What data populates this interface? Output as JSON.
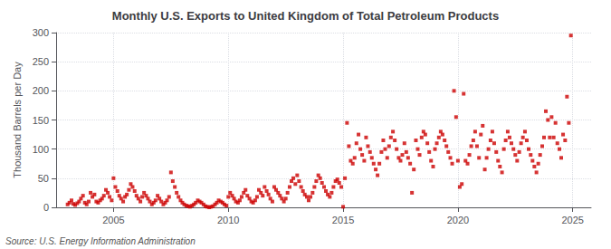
{
  "chart_data": {
    "type": "scatter",
    "title": "Monthly U.S. Exports to United Kingdom of Total Petroleum Products",
    "y_label": "Thousand Barrels per Day",
    "annotations": [
      "Source: U.S. Energy Information Administration"
    ],
    "color": "#CC0000",
    "marker": "square",
    "grid": true,
    "xlim": [
      2002.5,
      2025.8
    ],
    "xticks": [
      2005,
      2010,
      2015,
      2020,
      2025
    ],
    "ylim": [
      0,
      300
    ],
    "yticks": [
      0,
      50,
      100,
      150,
      200,
      250,
      300
    ],
    "x": [
      2003.0,
      2003.08,
      2003.17,
      2003.25,
      2003.33,
      2003.42,
      2003.5,
      2003.58,
      2003.67,
      2003.75,
      2003.83,
      2003.92,
      2004.0,
      2004.08,
      2004.17,
      2004.25,
      2004.33,
      2004.42,
      2004.5,
      2004.58,
      2004.67,
      2004.75,
      2004.83,
      2004.92,
      2005.0,
      2005.08,
      2005.17,
      2005.25,
      2005.33,
      2005.42,
      2005.5,
      2005.58,
      2005.67,
      2005.75,
      2005.83,
      2005.92,
      2006.0,
      2006.08,
      2006.17,
      2006.25,
      2006.33,
      2006.42,
      2006.5,
      2006.58,
      2006.67,
      2006.75,
      2006.83,
      2006.92,
      2007.0,
      2007.08,
      2007.17,
      2007.25,
      2007.33,
      2007.42,
      2007.5,
      2007.58,
      2007.67,
      2007.75,
      2007.83,
      2007.92,
      2008.0,
      2008.08,
      2008.17,
      2008.25,
      2008.33,
      2008.42,
      2008.5,
      2008.58,
      2008.67,
      2008.75,
      2008.83,
      2008.92,
      2009.0,
      2009.08,
      2009.17,
      2009.25,
      2009.33,
      2009.42,
      2009.5,
      2009.58,
      2009.67,
      2009.75,
      2009.83,
      2009.92,
      2010.0,
      2010.08,
      2010.17,
      2010.25,
      2010.33,
      2010.42,
      2010.5,
      2010.58,
      2010.67,
      2010.75,
      2010.83,
      2010.92,
      2011.0,
      2011.08,
      2011.17,
      2011.25,
      2011.33,
      2011.42,
      2011.5,
      2011.58,
      2011.67,
      2011.75,
      2011.83,
      2011.92,
      2012.0,
      2012.08,
      2012.17,
      2012.25,
      2012.33,
      2012.42,
      2012.5,
      2012.58,
      2012.67,
      2012.75,
      2012.83,
      2012.92,
      2013.0,
      2013.08,
      2013.17,
      2013.25,
      2013.33,
      2013.42,
      2013.5,
      2013.58,
      2013.67,
      2013.75,
      2013.83,
      2013.92,
      2014.0,
      2014.08,
      2014.17,
      2014.25,
      2014.33,
      2014.42,
      2014.5,
      2014.58,
      2014.67,
      2014.75,
      2014.83,
      2014.92,
      2015.0,
      2015.08,
      2015.17,
      2015.25,
      2015.33,
      2015.42,
      2015.5,
      2015.58,
      2015.67,
      2015.75,
      2015.83,
      2015.92,
      2016.0,
      2016.08,
      2016.17,
      2016.25,
      2016.33,
      2016.42,
      2016.5,
      2016.58,
      2016.67,
      2016.75,
      2016.83,
      2016.92,
      2017.0,
      2017.08,
      2017.17,
      2017.25,
      2017.33,
      2017.42,
      2017.5,
      2017.58,
      2017.67,
      2017.75,
      2017.83,
      2017.92,
      2018.0,
      2018.08,
      2018.17,
      2018.25,
      2018.33,
      2018.42,
      2018.5,
      2018.58,
      2018.67,
      2018.75,
      2018.83,
      2018.92,
      2019.0,
      2019.08,
      2019.17,
      2019.25,
      2019.33,
      2019.42,
      2019.5,
      2019.58,
      2019.67,
      2019.75,
      2019.83,
      2019.92,
      2020.0,
      2020.08,
      2020.17,
      2020.25,
      2020.33,
      2020.42,
      2020.5,
      2020.58,
      2020.67,
      2020.75,
      2020.83,
      2020.92,
      2021.0,
      2021.08,
      2021.17,
      2021.25,
      2021.33,
      2021.42,
      2021.5,
      2021.58,
      2021.67,
      2021.75,
      2021.83,
      2021.92,
      2022.0,
      2022.08,
      2022.17,
      2022.25,
      2022.33,
      2022.42,
      2022.5,
      2022.58,
      2022.67,
      2022.75,
      2022.83,
      2022.92,
      2023.0,
      2023.08,
      2023.17,
      2023.25,
      2023.33,
      2023.42,
      2023.5,
      2023.58,
      2023.67,
      2023.75,
      2023.83,
      2023.92,
      2024.0,
      2024.08,
      2024.17,
      2024.25,
      2024.33,
      2024.42,
      2024.5,
      2024.58,
      2024.67,
      2024.75,
      2024.83,
      2024.92
    ],
    "values": [
      5,
      8,
      12,
      6,
      4,
      7,
      10,
      15,
      20,
      8,
      5,
      10,
      25,
      18,
      22,
      10,
      8,
      12,
      15,
      20,
      30,
      25,
      18,
      12,
      50,
      35,
      28,
      20,
      15,
      10,
      18,
      22,
      30,
      40,
      35,
      28,
      20,
      15,
      10,
      18,
      25,
      20,
      15,
      10,
      5,
      8,
      12,
      20,
      15,
      10,
      5,
      8,
      12,
      18,
      60,
      45,
      35,
      25,
      18,
      12,
      8,
      5,
      3,
      2,
      1,
      3,
      5,
      8,
      12,
      10,
      8,
      5,
      2,
      1,
      0,
      1,
      2,
      5,
      8,
      12,
      10,
      8,
      5,
      3,
      18,
      25,
      20,
      15,
      10,
      8,
      12,
      18,
      25,
      30,
      20,
      15,
      10,
      8,
      12,
      18,
      30,
      25,
      20,
      35,
      28,
      22,
      15,
      10,
      35,
      30,
      25,
      20,
      15,
      10,
      15,
      25,
      35,
      45,
      50,
      40,
      55,
      45,
      35,
      28,
      22,
      18,
      12,
      18,
      25,
      35,
      45,
      55,
      50,
      42,
      35,
      28,
      22,
      18,
      25,
      35,
      45,
      48,
      42,
      35,
      1,
      50,
      145,
      105,
      80,
      75,
      85,
      110,
      125,
      100,
      90,
      80,
      120,
      105,
      95,
      85,
      75,
      65,
      55,
      75,
      95,
      115,
      100,
      85,
      105,
      120,
      130,
      115,
      100,
      85,
      80,
      90,
      110,
      95,
      85,
      75,
      25,
      65,
      115,
      100,
      90,
      120,
      130,
      125,
      110,
      95,
      80,
      70,
      100,
      110,
      120,
      130,
      125,
      115,
      105,
      95,
      85,
      75,
      200,
      155,
      80,
      35,
      40,
      195,
      80,
      75,
      90,
      105,
      115,
      130,
      105,
      85,
      125,
      140,
      65,
      85,
      100,
      115,
      130,
      110,
      95,
      80,
      70,
      60,
      100,
      115,
      130,
      120,
      110,
      100,
      90,
      80,
      95,
      110,
      120,
      130,
      115,
      100,
      90,
      80,
      70,
      60,
      75,
      90,
      105,
      120,
      165,
      150,
      120,
      155,
      120,
      145,
      110,
      100,
      85,
      125,
      115,
      190,
      145,
      295
    ]
  }
}
